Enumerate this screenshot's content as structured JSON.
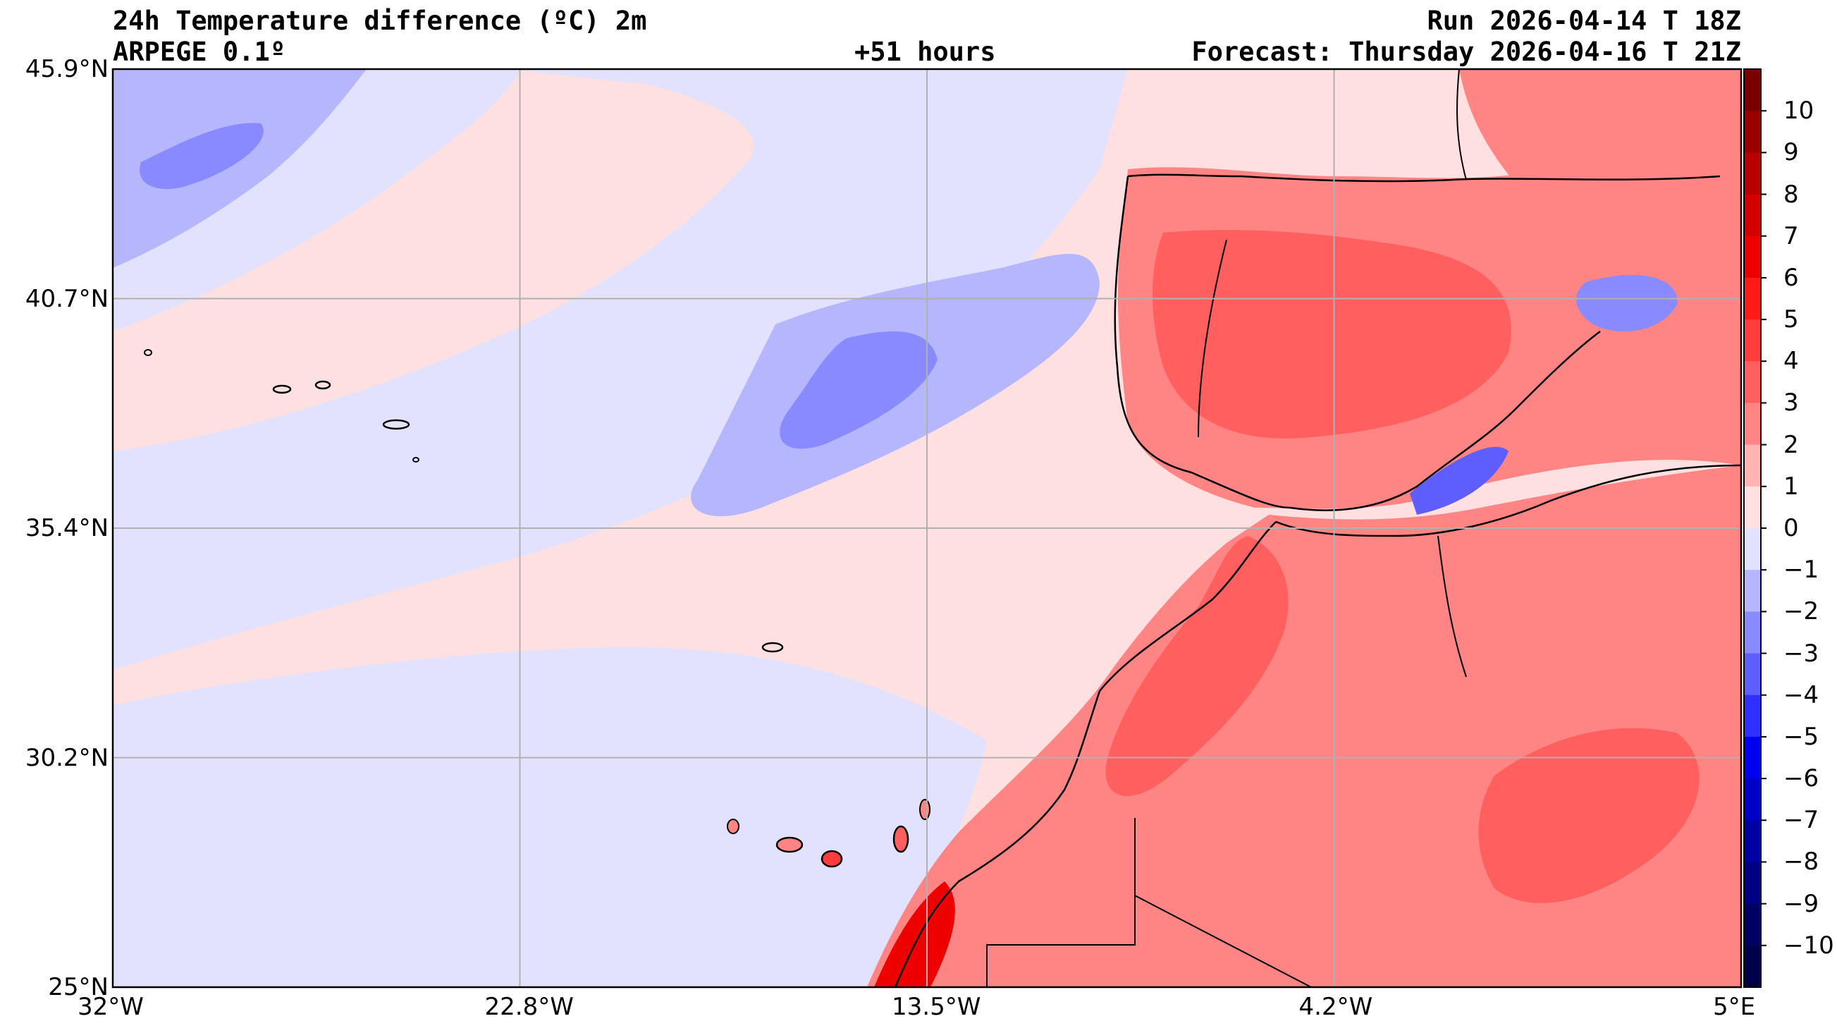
{
  "header": {
    "title": "24h Temperature difference (ºC) 2m",
    "model": "ARPEGE 0.1º",
    "lead": "+51 hours",
    "run": "Run 2026-04-14 T 18Z",
    "forecast": "Forecast: Thursday 2026-04-16 T 21Z"
  },
  "map": {
    "lon_range": [
      -32,
      5
    ],
    "lat_range": [
      25,
      45.9
    ],
    "lat_labels": [
      "45.9°N",
      "40.7°N",
      "35.4°N",
      "30.2°N",
      "25°N"
    ],
    "lon_labels": [
      "32°W",
      "22.8°W",
      "13.5°W",
      "4.2°W",
      "5°E"
    ],
    "gridlines": true
  },
  "colorbar": {
    "labels": [
      "10",
      "9",
      "8",
      "7",
      "6",
      "5",
      "4",
      "3",
      "2",
      "1",
      "0",
      "−1",
      "−2",
      "−3",
      "−4",
      "−5",
      "−6",
      "−7",
      "−8",
      "−9",
      "−10"
    ],
    "colors_top_to_bottom": [
      "#7a0000",
      "#9a0000",
      "#b80000",
      "#d40000",
      "#ee0000",
      "#ff1a1a",
      "#ff3d3d",
      "#ff5f5f",
      "#ff8484",
      "#ffb3b3",
      "#ffe0e0",
      "#e2e2ff",
      "#b6b6ff",
      "#8a8aff",
      "#5e5eff",
      "#2f2fff",
      "#0000f0",
      "#0000c8",
      "#0000a4",
      "#000082",
      "#000062",
      "#00004a"
    ],
    "colors_legend": {
      "neutral_warm": "#ffe0e0",
      "neutral_cool": "#e2e2ff",
      "warm": "#ff5f5f",
      "cool": "#8a8aff"
    }
  }
}
